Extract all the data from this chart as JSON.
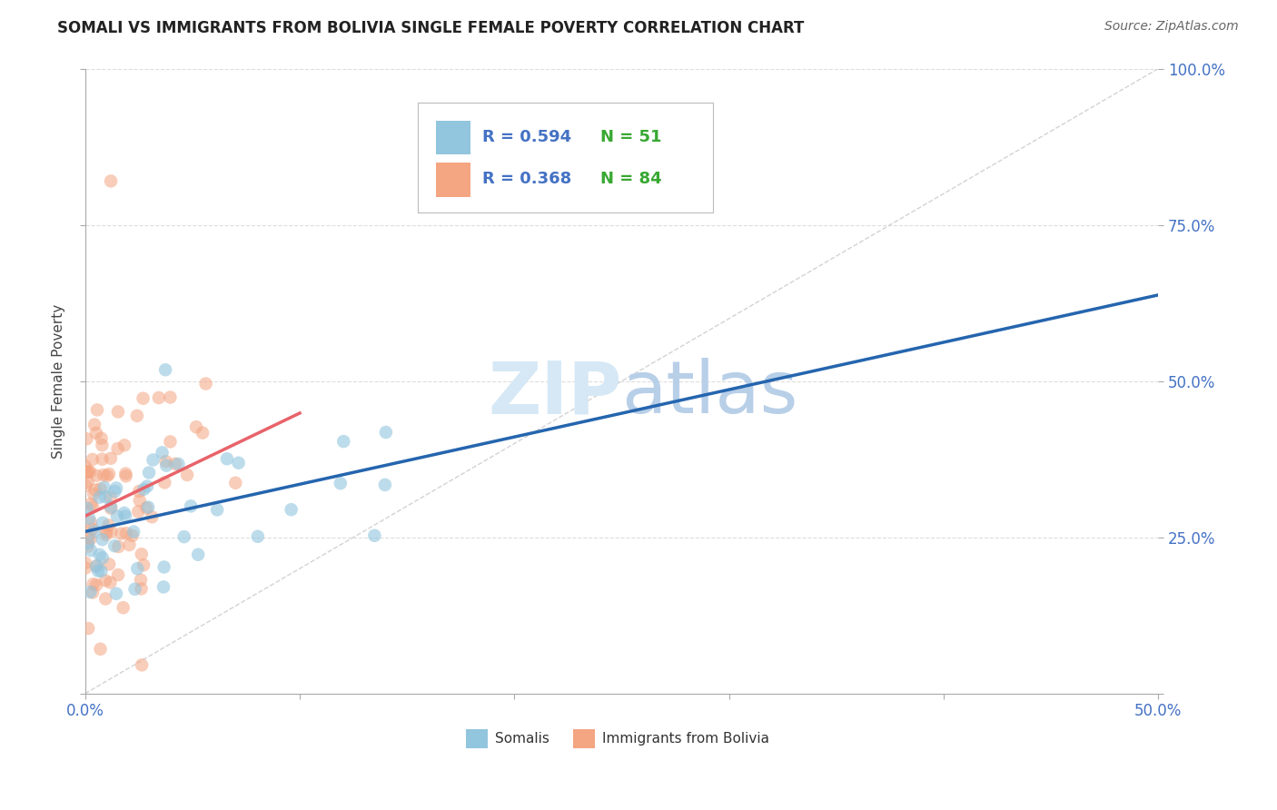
{
  "title": "SOMALI VS IMMIGRANTS FROM BOLIVIA SINGLE FEMALE POVERTY CORRELATION CHART",
  "source": "Source: ZipAtlas.com",
  "ylabel": "Single Female Poverty",
  "xlim": [
    0,
    0.5
  ],
  "ylim": [
    0,
    1.0
  ],
  "somali_color": "#92c5de",
  "bolivia_color": "#f4a582",
  "somali_R": 0.594,
  "somali_N": 51,
  "bolivia_R": 0.368,
  "bolivia_N": 84,
  "legend_R_color": "#4472c4",
  "legend_N_color": "#38a832",
  "axis_color": "#4472c4",
  "watermark_color": "#d6e8f5",
  "somali_line_color": "#2565ae",
  "bolivia_line_color": "#e8636a",
  "diagonal_color": "#c8c8c8",
  "somali_line_y0": 0.255,
  "somali_line_y1": 0.615,
  "bolivia_line_x0": 0.0,
  "bolivia_line_x1": 0.095,
  "bolivia_line_y0": 0.27,
  "bolivia_line_y1": 0.4
}
